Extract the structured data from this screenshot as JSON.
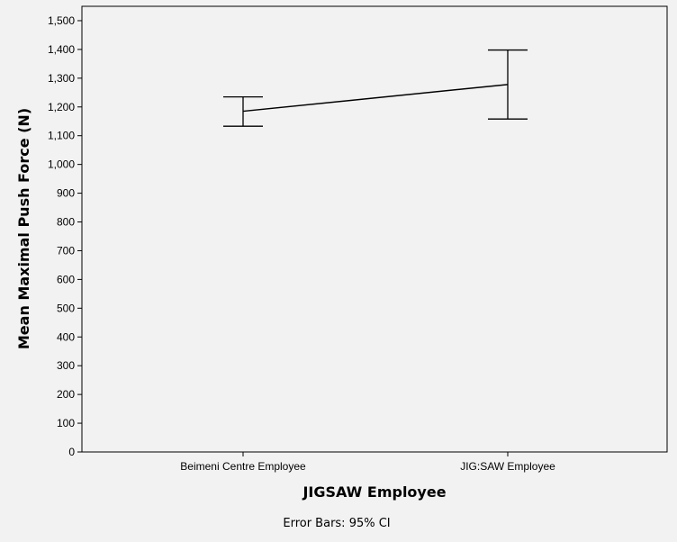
{
  "chart_data": {
    "type": "line",
    "title": "",
    "xlabel": "JIGSAW Employee",
    "ylabel": "Mean Maximal Push Force (N)",
    "ylim": [
      0,
      1550
    ],
    "yticks": [
      0,
      100,
      200,
      300,
      400,
      500,
      600,
      700,
      800,
      900,
      1000,
      1100,
      1200,
      1300,
      1400,
      1500
    ],
    "ytick_labels": [
      "0",
      "100",
      "200",
      "300",
      "400",
      "500",
      "600",
      "700",
      "800",
      "900",
      "1,000",
      "1,100",
      "1,200",
      "1,300",
      "1,400",
      "1,500"
    ],
    "categories": [
      "Beimeni Centre Employee",
      "JIG:SAW Employee"
    ],
    "series": [
      {
        "name": "Mean Maximal Push Force (N)",
        "values": [
          1185,
          1278
        ],
        "ci_lower": [
          1133,
          1158
        ],
        "ci_upper": [
          1235,
          1398
        ]
      }
    ],
    "grid": false,
    "footnote": "Error Bars: 95% CI"
  }
}
